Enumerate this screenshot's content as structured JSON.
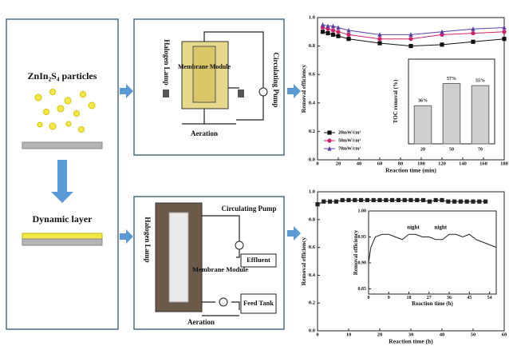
{
  "left_panel": {
    "particles_label": "ZnIn₂S₄ particles",
    "layer_label": "Dynamic layer"
  },
  "schematics": [
    {
      "lamp": "Halogen Lamp",
      "module": "Membrane Module",
      "pump": "Circulating Pump",
      "aeration": "Aeration"
    },
    {
      "lamp": "Halogen Lamp",
      "pump": "Circulating Pump",
      "module": "Membrane Module",
      "effluent": "Effluent",
      "feed": "Feed Tank",
      "aeration": "Aeration"
    }
  ],
  "chart_data": [
    {
      "type": "line",
      "xlabel": "Reaction time (min)",
      "ylabel": "Removal efficiency",
      "xlim": [
        0,
        180
      ],
      "xticks": [
        0,
        20,
        40,
        60,
        80,
        100,
        120,
        140,
        160,
        180
      ],
      "ylim": [
        0,
        1
      ],
      "yticks": [
        {
          "value": 0,
          "label": "0.0"
        },
        {
          "value": 0.2,
          "label": "0.2"
        },
        {
          "value": 0.4,
          "label": "0.4"
        },
        {
          "value": 0.6,
          "label": "0.6"
        },
        {
          "value": 0.8,
          "label": "0.8"
        },
        {
          "value": 1,
          "label": "1.0"
        }
      ],
      "legend": "lower left",
      "x": [
        5,
        10,
        15,
        20,
        30,
        60,
        90,
        120,
        150,
        180
      ],
      "series": [
        {
          "name": "20mW/cm²",
          "color": "#111111",
          "marker": "square",
          "values": [
            0.9,
            0.89,
            0.88,
            0.87,
            0.85,
            0.82,
            0.8,
            0.81,
            0.83,
            0.85
          ]
        },
        {
          "name": "50mW/cm²",
          "color": "#d0206a",
          "marker": "circle",
          "values": [
            0.93,
            0.92,
            0.91,
            0.9,
            0.88,
            0.85,
            0.85,
            0.88,
            0.89,
            0.9
          ]
        },
        {
          "name": "70mW/cm²",
          "color": "#5a3fa8",
          "marker": "triangle",
          "values": [
            0.95,
            0.94,
            0.94,
            0.93,
            0.91,
            0.88,
            0.88,
            0.9,
            0.92,
            0.93
          ]
        }
      ]
    },
    {
      "type": "bar",
      "ylabel": "TOC removal (%)",
      "ylim": [
        0,
        80
      ],
      "categories": [
        "20",
        "50",
        "70"
      ],
      "values": [
        36,
        57,
        55
      ],
      "value_labels": [
        "36%",
        "57%",
        "55%"
      ],
      "color": "#cfcfcf"
    },
    {
      "type": "line",
      "xlabel": "Reaction time (h)",
      "ylabel": "Removal efficiency",
      "xlim": [
        0,
        60
      ],
      "xticks": [
        0,
        10,
        20,
        30,
        40,
        50,
        60
      ],
      "ylim": [
        0,
        1
      ],
      "yticks": [
        {
          "value": 0,
          "label": "0.0"
        },
        {
          "value": 0.2,
          "label": "0.2"
        },
        {
          "value": 0.4,
          "label": "0.4"
        },
        {
          "value": 0.6,
          "label": "0.6"
        },
        {
          "value": 0.8,
          "label": "0.8"
        },
        {
          "value": 1,
          "label": "1.0"
        }
      ],
      "x": [
        0,
        2,
        4,
        6,
        8,
        10,
        12,
        14,
        16,
        18,
        20,
        22,
        24,
        26,
        28,
        30,
        32,
        34,
        36,
        38,
        40,
        42,
        44,
        46,
        48,
        50,
        52,
        54
      ],
      "series": [
        {
          "name": "Removal efficiency",
          "color": "#222222",
          "marker": "square",
          "values": [
            0.91,
            0.93,
            0.93,
            0.93,
            0.94,
            0.94,
            0.94,
            0.94,
            0.94,
            0.94,
            0.94,
            0.94,
            0.94,
            0.94,
            0.94,
            0.94,
            0.94,
            0.94,
            0.93,
            0.94,
            0.94,
            0.93,
            0.93,
            0.93,
            0.93,
            0.93,
            0.93,
            0.93
          ]
        }
      ]
    },
    {
      "type": "line",
      "xlabel": "Reaction time (h)",
      "ylabel": "Removal efficiency",
      "xlim": [
        0,
        57
      ],
      "xticks": [
        0,
        9,
        18,
        27,
        36,
        45,
        54
      ],
      "ylim": [
        0.84,
        1.0
      ],
      "yticks": [
        {
          "value": 0.85,
          "label": "0.85"
        },
        {
          "value": 0.9,
          "label": "0.90"
        },
        {
          "value": 0.95,
          "label": "0.95"
        },
        {
          "value": 1.0,
          "label": "1.00"
        }
      ],
      "annotations": [
        "night",
        "night"
      ],
      "x": [
        0,
        1,
        3,
        6,
        9,
        12,
        15,
        18,
        21,
        24,
        27,
        30,
        33,
        36,
        39,
        42,
        45,
        48,
        51,
        54,
        57
      ],
      "series": [
        {
          "name": "Removal efficiency",
          "color": "#222222",
          "marker": "none",
          "values": [
            0.9,
            0.93,
            0.95,
            0.955,
            0.955,
            0.95,
            0.945,
            0.955,
            0.955,
            0.95,
            0.95,
            0.945,
            0.945,
            0.955,
            0.955,
            0.95,
            0.955,
            0.945,
            0.94,
            0.935,
            0.93
          ]
        }
      ]
    }
  ]
}
